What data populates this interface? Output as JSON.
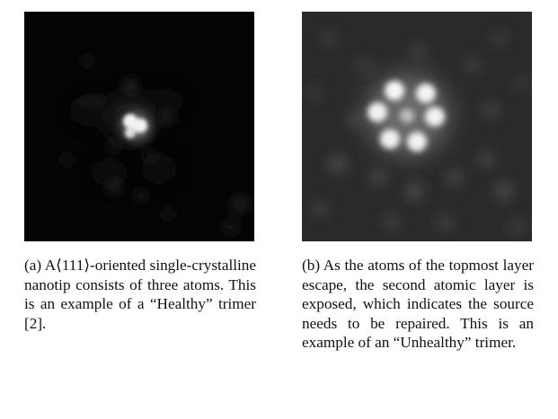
{
  "figure_a": {
    "caption_label": "(a)",
    "caption_text": "A⟨111⟩-oriented single-crystalline nanotip consists of three atoms. This is an example of a “Healthy” trimer [2].",
    "description_icon": "field-ion-microscope-image-trimer"
  },
  "figure_b": {
    "caption_label": "(b)",
    "caption_text": "As the atoms of the topmost layer escape, the second atomic layer is exposed, which indicates the source needs to be repaired. This is an example of an “Unhealthy” trimer.",
    "description_icon": "field-ion-microscope-image-hexamer"
  }
}
